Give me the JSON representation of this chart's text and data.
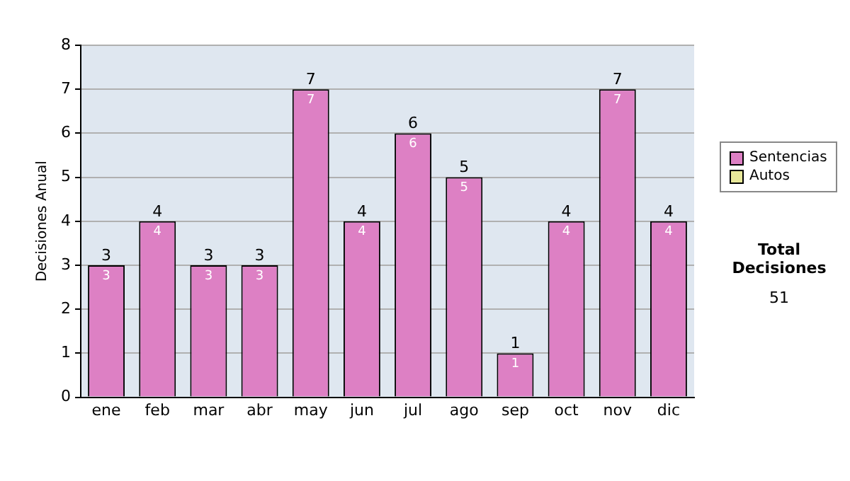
{
  "chart_data": {
    "type": "bar",
    "stacked": true,
    "ylabel": "Decisiones Anual",
    "categories": [
      "ene",
      "feb",
      "mar",
      "abr",
      "may",
      "jun",
      "jul",
      "ago",
      "sep",
      "oct",
      "nov",
      "dic"
    ],
    "series": [
      {
        "name": "Sentencias",
        "color": "#dd80c4",
        "values": [
          3,
          4,
          3,
          3,
          7,
          4,
          6,
          5,
          1,
          4,
          7,
          4
        ]
      },
      {
        "name": "Autos",
        "color": "#e8e89a",
        "values": [
          null,
          null,
          null,
          null,
          null,
          null,
          null,
          null,
          null,
          null,
          null,
          null
        ]
      }
    ],
    "data_labels": true,
    "totals": [
      "3",
      "4",
      "3",
      "3",
      "7",
      "4",
      "6",
      "5",
      "1",
      "4",
      "7",
      "4"
    ],
    "ylim": [
      0,
      8
    ],
    "yticks": [
      0,
      1,
      2,
      3,
      4,
      5,
      6,
      7,
      8
    ],
    "grid": "y",
    "legend": "right",
    "annotations": [
      "Total Decisiones",
      "51"
    ]
  }
}
